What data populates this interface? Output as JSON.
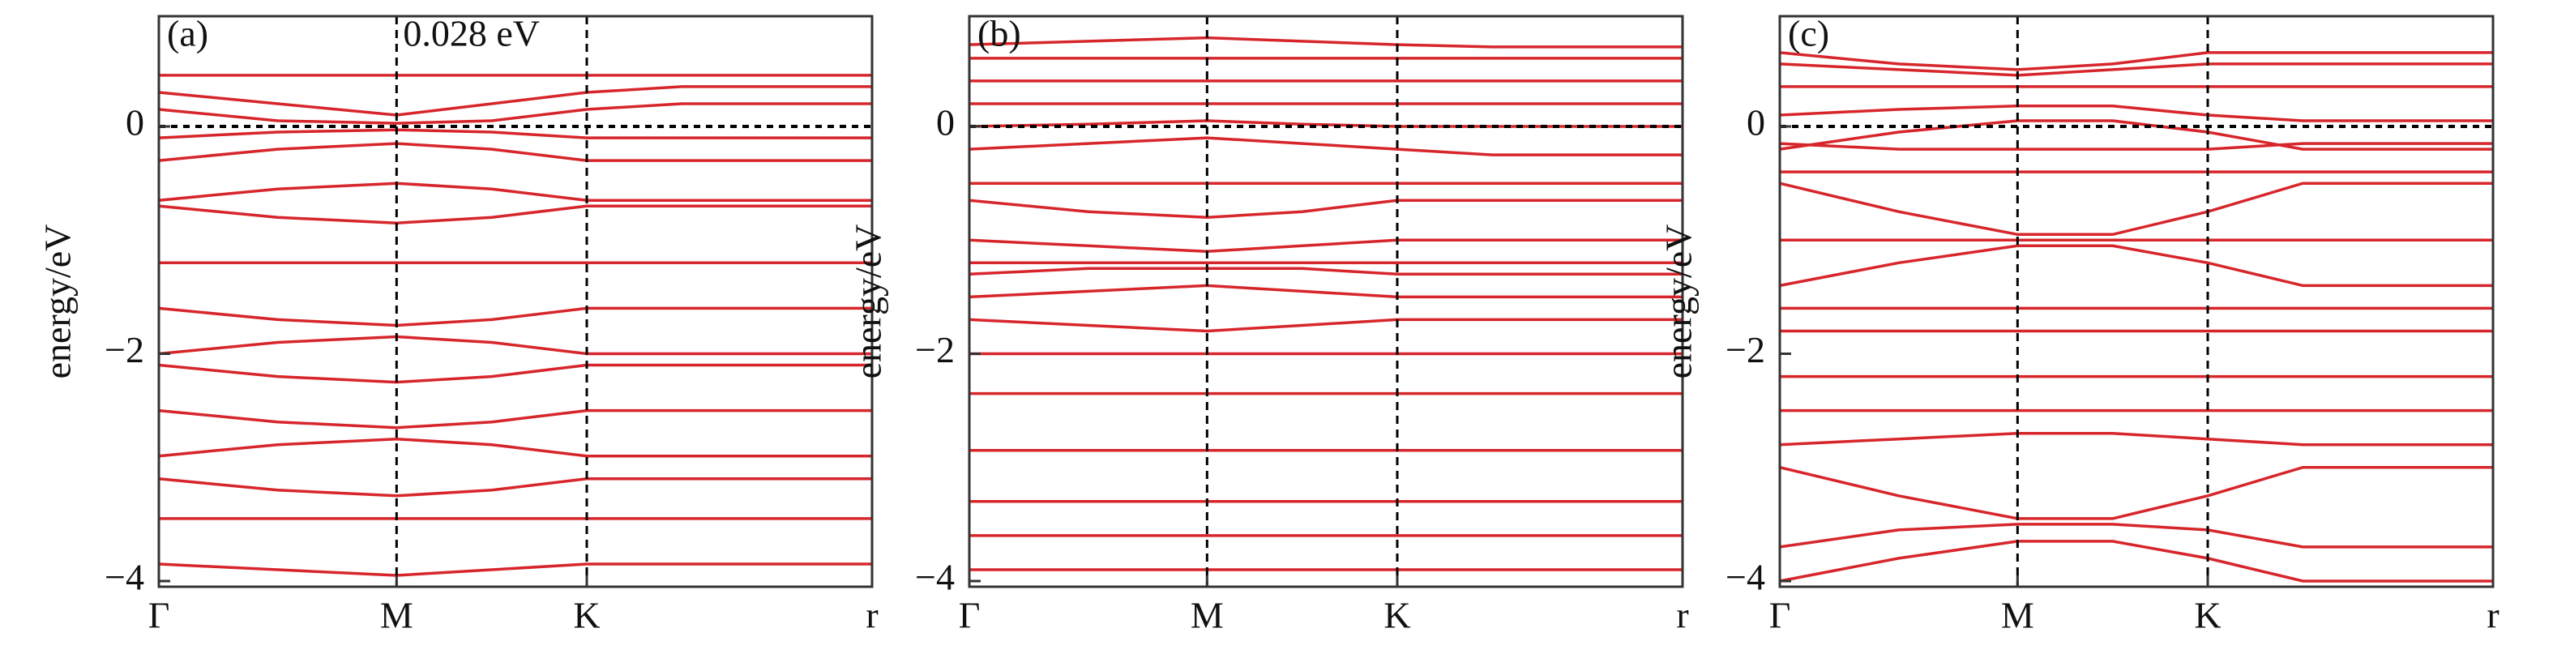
{
  "chart_data": [
    {
      "type": "line",
      "panel_label": "(a)",
      "y_label": "energy/eV",
      "annotation": "0.028 eV",
      "color": "#d7262b",
      "x": [
        0,
        0.5,
        1,
        1.4,
        1.8,
        2.2,
        3
      ],
      "xlim": [
        0,
        3
      ],
      "xticks": [
        {
          "value": 0,
          "label": "Γ"
        },
        {
          "value": 1,
          "label": "M"
        },
        {
          "value": 1.8,
          "label": "K"
        },
        {
          "value": 3,
          "label": "r"
        }
      ],
      "ylim": [
        -4.05,
        0.97
      ],
      "yticks": [
        {
          "value": 0,
          "label": "0"
        },
        {
          "value": -2,
          "label": "−2"
        },
        {
          "value": -4,
          "label": "−4"
        }
      ],
      "hline": 0,
      "vlines": [
        1,
        1.8
      ],
      "series": [
        {
          "values": [
            0.45,
            0.45,
            0.45,
            0.45,
            0.45,
            0.45,
            0.45
          ]
        },
        {
          "values": [
            0.3,
            0.2,
            0.1,
            0.2,
            0.3,
            0.35,
            0.35
          ]
        },
        {
          "values": [
            0.15,
            0.05,
            0.028,
            0.05,
            0.15,
            0.2,
            0.2
          ]
        },
        {
          "values": [
            -0.1,
            -0.05,
            -0.03,
            -0.05,
            -0.1,
            -0.1,
            -0.1
          ]
        },
        {
          "values": [
            -0.3,
            -0.2,
            -0.15,
            -0.2,
            -0.3,
            -0.3,
            -0.3
          ]
        },
        {
          "values": [
            -0.65,
            -0.55,
            -0.5,
            -0.55,
            -0.65,
            -0.65,
            -0.65
          ]
        },
        {
          "values": [
            -0.7,
            -0.8,
            -0.85,
            -0.8,
            -0.7,
            -0.7,
            -0.7
          ]
        },
        {
          "values": [
            -1.2,
            -1.2,
            -1.2,
            -1.2,
            -1.2,
            -1.2,
            -1.2
          ]
        },
        {
          "values": [
            -1.6,
            -1.7,
            -1.75,
            -1.7,
            -1.6,
            -1.6,
            -1.6
          ]
        },
        {
          "values": [
            -2.0,
            -1.9,
            -1.85,
            -1.9,
            -2.0,
            -2.0,
            -2.0
          ]
        },
        {
          "values": [
            -2.1,
            -2.2,
            -2.25,
            -2.2,
            -2.1,
            -2.1,
            -2.1
          ]
        },
        {
          "values": [
            -2.5,
            -2.6,
            -2.65,
            -2.6,
            -2.5,
            -2.5,
            -2.5
          ]
        },
        {
          "values": [
            -2.9,
            -2.8,
            -2.75,
            -2.8,
            -2.9,
            -2.9,
            -2.9
          ]
        },
        {
          "values": [
            -3.1,
            -3.2,
            -3.25,
            -3.2,
            -3.1,
            -3.1,
            -3.1
          ]
        },
        {
          "values": [
            -3.45,
            -3.45,
            -3.45,
            -3.45,
            -3.45,
            -3.45,
            -3.45
          ]
        },
        {
          "values": [
            -3.85,
            -3.9,
            -3.95,
            -3.9,
            -3.85,
            -3.85,
            -3.85
          ]
        }
      ]
    },
    {
      "type": "line",
      "panel_label": "(b)",
      "y_label": "energy/eV",
      "color": "#d7262b",
      "x": [
        0,
        0.5,
        1,
        1.4,
        1.8,
        2.2,
        3
      ],
      "xlim": [
        0,
        3
      ],
      "xticks": [
        {
          "value": 0,
          "label": "Γ"
        },
        {
          "value": 1,
          "label": "M"
        },
        {
          "value": 1.8,
          "label": "K"
        },
        {
          "value": 3,
          "label": "r"
        }
      ],
      "ylim": [
        -4.05,
        0.97
      ],
      "yticks": [
        {
          "value": 0,
          "label": "0"
        },
        {
          "value": -2,
          "label": "−2"
        },
        {
          "value": -4,
          "label": "−4"
        }
      ],
      "hline": 0,
      "vlines": [
        1,
        1.8
      ],
      "series": [
        {
          "values": [
            0.72,
            0.75,
            0.78,
            0.75,
            0.72,
            0.7,
            0.7
          ]
        },
        {
          "values": [
            0.6,
            0.6,
            0.6,
            0.6,
            0.6,
            0.6,
            0.6
          ]
        },
        {
          "values": [
            0.4,
            0.4,
            0.4,
            0.4,
            0.4,
            0.4,
            0.4
          ]
        },
        {
          "values": [
            0.2,
            0.2,
            0.2,
            0.2,
            0.2,
            0.2,
            0.2
          ]
        },
        {
          "values": [
            0.0,
            0.02,
            0.05,
            0.02,
            0.0,
            0,
            0
          ]
        },
        {
          "values": [
            -0.2,
            -0.15,
            -0.1,
            -0.15,
            -0.2,
            -0.25,
            -0.25
          ]
        },
        {
          "values": [
            -0.5,
            -0.5,
            -0.5,
            -0.5,
            -0.5,
            -0.5,
            -0.5
          ]
        },
        {
          "values": [
            -0.65,
            -0.75,
            -0.8,
            -0.75,
            -0.65,
            -0.65,
            -0.65
          ]
        },
        {
          "values": [
            -1.0,
            -1.05,
            -1.1,
            -1.05,
            -1.0,
            -1.0,
            -1.0
          ]
        },
        {
          "values": [
            -1.2,
            -1.2,
            -1.2,
            -1.2,
            -1.2,
            -1.2,
            -1.2
          ]
        },
        {
          "values": [
            -1.3,
            -1.25,
            -1.25,
            -1.25,
            -1.3,
            -1.3,
            -1.3
          ]
        },
        {
          "values": [
            -1.5,
            -1.45,
            -1.4,
            -1.45,
            -1.5,
            -1.5,
            -1.5
          ]
        },
        {
          "values": [
            -1.7,
            -1.75,
            -1.8,
            -1.75,
            -1.7,
            -1.7,
            -1.7
          ]
        },
        {
          "values": [
            -2.0,
            -2.0,
            -2.0,
            -2.0,
            -2.0,
            -2.0,
            -2.0
          ]
        },
        {
          "values": [
            -2.35,
            -2.35,
            -2.35,
            -2.35,
            -2.35,
            -2.35,
            -2.35
          ]
        },
        {
          "values": [
            -2.85,
            -2.85,
            -2.85,
            -2.85,
            -2.85,
            -2.85,
            -2.85
          ]
        },
        {
          "values": [
            -3.3,
            -3.3,
            -3.3,
            -3.3,
            -3.3,
            -3.3,
            -3.3
          ]
        },
        {
          "values": [
            -3.6,
            -3.6,
            -3.6,
            -3.6,
            -3.6,
            -3.6,
            -3.6
          ]
        },
        {
          "values": [
            -3.9,
            -3.9,
            -3.9,
            -3.9,
            -3.9,
            -3.9,
            -3.9
          ]
        }
      ]
    },
    {
      "type": "line",
      "panel_label": "(c)",
      "y_label": "energy/eV",
      "color": "#d7262b",
      "x": [
        0,
        0.5,
        1,
        1.4,
        1.8,
        2.2,
        3
      ],
      "xlim": [
        0,
        3
      ],
      "xticks": [
        {
          "value": 0,
          "label": "Γ"
        },
        {
          "value": 1,
          "label": "M"
        },
        {
          "value": 1.8,
          "label": "K"
        },
        {
          "value": 3,
          "label": "r"
        }
      ],
      "ylim": [
        -4.05,
        0.97
      ],
      "yticks": [
        {
          "value": 0,
          "label": "0"
        },
        {
          "value": -2,
          "label": "−2"
        },
        {
          "value": -4,
          "label": "−4"
        }
      ],
      "hline": 0,
      "vlines": [
        1,
        1.8
      ],
      "series": [
        {
          "values": [
            0.65,
            0.55,
            0.5,
            0.55,
            0.65,
            0.65,
            0.65
          ]
        },
        {
          "values": [
            0.55,
            0.5,
            0.45,
            0.5,
            0.55,
            0.55,
            0.55
          ]
        },
        {
          "values": [
            0.35,
            0.35,
            0.35,
            0.35,
            0.35,
            0.35,
            0.35
          ]
        },
        {
          "values": [
            0.1,
            0.15,
            0.18,
            0.18,
            0.1,
            0.05,
            0.05
          ]
        },
        {
          "values": [
            -0.2,
            -0.05,
            0.05,
            0.05,
            -0.05,
            -0.2,
            -0.2
          ]
        },
        {
          "values": [
            -0.15,
            -0.2,
            -0.2,
            -0.2,
            -0.2,
            -0.15,
            -0.15
          ]
        },
        {
          "values": [
            -0.4,
            -0.4,
            -0.4,
            -0.4,
            -0.4,
            -0.4,
            -0.4
          ]
        },
        {
          "values": [
            -0.5,
            -0.75,
            -0.95,
            -0.95,
            -0.75,
            -0.5,
            -0.5
          ]
        },
        {
          "values": [
            -1.0,
            -1.0,
            -1.0,
            -1.0,
            -1.0,
            -1.0,
            -1.0
          ]
        },
        {
          "values": [
            -1.4,
            -1.2,
            -1.05,
            -1.05,
            -1.2,
            -1.4,
            -1.4
          ]
        },
        {
          "values": [
            -1.6,
            -1.6,
            -1.6,
            -1.6,
            -1.6,
            -1.6,
            -1.6
          ]
        },
        {
          "values": [
            -1.8,
            -1.8,
            -1.8,
            -1.8,
            -1.8,
            -1.8,
            -1.8
          ]
        },
        {
          "values": [
            -2.2,
            -2.2,
            -2.2,
            -2.2,
            -2.2,
            -2.2,
            -2.2
          ]
        },
        {
          "values": [
            -2.5,
            -2.5,
            -2.5,
            -2.5,
            -2.5,
            -2.5,
            -2.5
          ]
        },
        {
          "values": [
            -2.8,
            -2.75,
            -2.7,
            -2.7,
            -2.75,
            -2.8,
            -2.8
          ]
        },
        {
          "values": [
            -3.0,
            -3.25,
            -3.45,
            -3.45,
            -3.25,
            -3.0,
            -3.0
          ]
        },
        {
          "values": [
            -3.7,
            -3.55,
            -3.5,
            -3.5,
            -3.55,
            -3.7,
            -3.7
          ]
        },
        {
          "values": [
            -4.0,
            -3.8,
            -3.65,
            -3.65,
            -3.8,
            -4.0,
            -4.0
          ]
        }
      ]
    }
  ]
}
